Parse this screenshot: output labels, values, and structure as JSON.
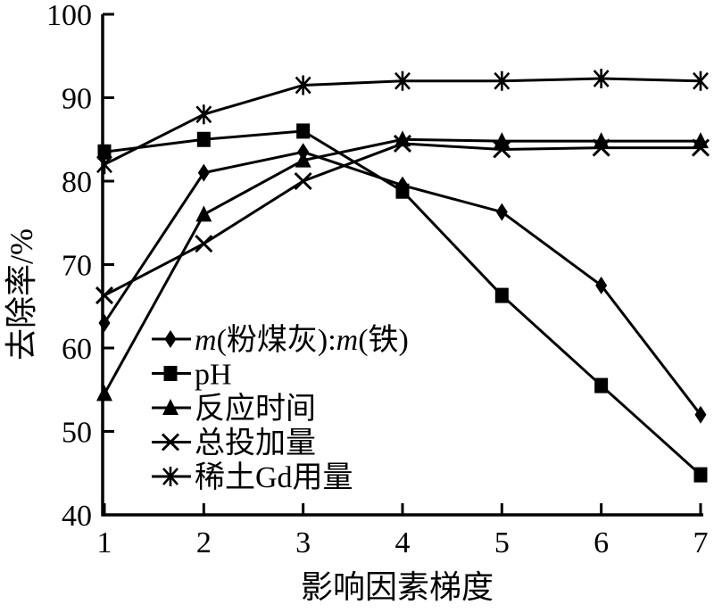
{
  "chart_data": {
    "type": "line",
    "title": "",
    "xlabel": "影响因素梯度",
    "ylabel": "去除率/%",
    "xlim": [
      1,
      7
    ],
    "ylim": [
      40,
      100
    ],
    "xticks": [
      1,
      2,
      3,
      4,
      5,
      6,
      7
    ],
    "yticks": [
      40,
      50,
      60,
      70,
      80,
      90,
      100
    ],
    "grid": false,
    "legend_position": "inside lower-left",
    "line_color": "#000000",
    "background": "#ffffff",
    "x": [
      1,
      2,
      3,
      4,
      5,
      6,
      7
    ],
    "series": [
      {
        "name": "m(粉煤灰):m(铁)",
        "marker": "diamond",
        "name_runs": [
          {
            "t": "m",
            "i": true
          },
          {
            "t": "(粉煤灰):",
            "i": false
          },
          {
            "t": "m",
            "i": true
          },
          {
            "t": "(铁)",
            "i": false
          }
        ],
        "values": [
          63,
          81,
          83.5,
          79.5,
          76.3,
          67.5,
          52
        ]
      },
      {
        "name": "pH",
        "marker": "square",
        "values": [
          83.5,
          85,
          86,
          78.8,
          66.3,
          55.5,
          44.8
        ]
      },
      {
        "name": "反应时间",
        "marker": "triangle",
        "values": [
          54.5,
          76,
          82.5,
          85,
          84.8,
          84.8,
          84.8
        ]
      },
      {
        "name": "总投加量",
        "marker": "x",
        "values": [
          66.3,
          72.5,
          80,
          84.5,
          83.8,
          84,
          84
        ]
      },
      {
        "name": "稀土Gd用量",
        "marker": "asterisk",
        "values": [
          82,
          88,
          91.5,
          92,
          92,
          92.3,
          92
        ]
      }
    ]
  }
}
